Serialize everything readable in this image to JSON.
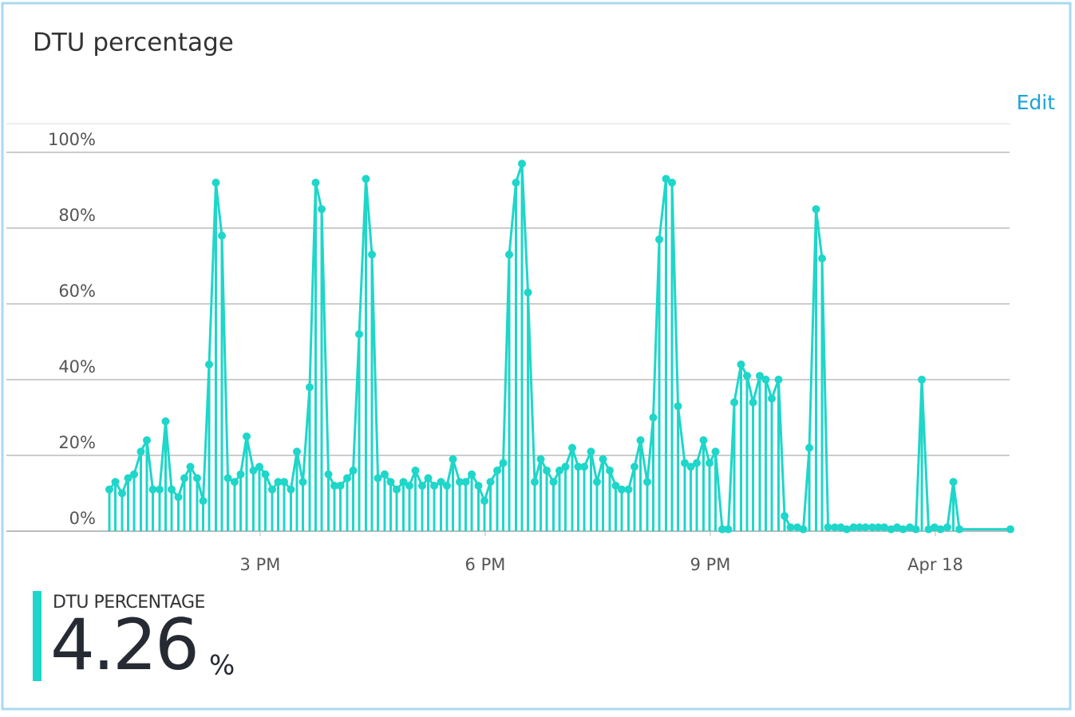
{
  "chart_data": {
    "type": "line",
    "title": "DTU percentage",
    "edit_link": "Edit",
    "color": "#1ed6c9",
    "grid": true,
    "xlim": [
      12.99,
      25
    ],
    "ylim": [
      0,
      100
    ],
    "xticks": [
      {
        "value": 15,
        "label": "3 PM"
      },
      {
        "value": 18,
        "label": "6 PM"
      },
      {
        "value": 21,
        "label": "9 PM"
      },
      {
        "value": 24,
        "label": "Apr 18"
      }
    ],
    "yticks": [
      {
        "value": 0,
        "label": "0%"
      },
      {
        "value": 20,
        "label": "20%"
      },
      {
        "value": 40,
        "label": "40%"
      },
      {
        "value": 60,
        "label": "60%"
      },
      {
        "value": 80,
        "label": "80%"
      },
      {
        "value": 100,
        "label": "100%"
      }
    ],
    "x": [
      12.99,
      13.07,
      13.16,
      13.24,
      13.32,
      13.41,
      13.49,
      13.57,
      13.66,
      13.74,
      13.82,
      13.91,
      13.99,
      14.07,
      14.16,
      14.24,
      14.32,
      14.41,
      14.49,
      14.57,
      14.66,
      14.74,
      14.82,
      14.91,
      14.99,
      15.07,
      15.16,
      15.24,
      15.32,
      15.41,
      15.49,
      15.57,
      15.66,
      15.74,
      15.82,
      15.91,
      15.99,
      16.07,
      16.16,
      16.24,
      16.32,
      16.41,
      16.49,
      16.57,
      16.66,
      16.74,
      16.82,
      16.91,
      16.99,
      17.07,
      17.16,
      17.24,
      17.32,
      17.41,
      17.49,
      17.57,
      17.66,
      17.74,
      17.82,
      17.91,
      17.99,
      18.07,
      18.16,
      18.24,
      18.32,
      18.41,
      18.49,
      18.57,
      18.66,
      18.74,
      18.82,
      18.91,
      18.99,
      19.07,
      19.16,
      19.24,
      19.32,
      19.41,
      19.49,
      19.57,
      19.66,
      19.74,
      19.82,
      19.91,
      19.99,
      20.07,
      20.16,
      20.24,
      20.32,
      20.41,
      20.49,
      20.57,
      20.66,
      20.74,
      20.82,
      20.91,
      20.99,
      21.07,
      21.16,
      21.24,
      21.32,
      21.41,
      21.49,
      21.57,
      21.66,
      21.74,
      21.82,
      21.91,
      21.99,
      22.07,
      22.16,
      22.24,
      22.32,
      22.41,
      22.49,
      22.57,
      22.66,
      22.74,
      22.82,
      22.91,
      22.99,
      23.07,
      23.16,
      23.24,
      23.32,
      23.41,
      23.49,
      23.57,
      23.66,
      23.74,
      23.82,
      23.91,
      23.99,
      24.07,
      24.16,
      24.24,
      24.32,
      25
    ],
    "series": [
      {
        "name": "DTU percentage",
        "color": "#1ed6c9",
        "values": [
          11,
          13,
          10,
          14,
          15,
          21,
          24,
          11,
          11,
          29,
          11,
          9,
          14,
          17,
          14,
          8,
          44,
          92,
          78,
          14,
          13,
          15,
          25,
          16,
          17,
          15,
          11,
          13,
          13,
          11,
          21,
          13,
          38,
          92,
          85,
          15,
          12,
          12,
          14,
          16,
          52,
          93,
          73,
          14,
          15,
          13,
          11,
          13,
          12,
          16,
          12,
          14,
          12,
          13,
          12,
          19,
          13,
          13,
          15,
          12,
          8,
          13,
          16,
          18,
          73,
          92,
          97,
          63,
          13,
          19,
          16,
          13,
          16,
          17,
          22,
          17,
          17,
          21,
          13,
          19,
          16,
          12,
          11,
          11,
          17,
          24,
          13,
          30,
          77,
          93,
          92,
          33,
          18,
          17,
          18,
          24,
          18,
          21,
          0.5,
          0.5,
          34,
          44,
          41,
          34,
          41,
          40,
          35,
          40,
          4,
          1,
          1,
          0.5,
          22,
          85,
          72,
          1,
          1,
          1,
          0.5,
          1,
          1,
          1,
          1,
          1,
          1,
          0.5,
          1,
          0.5,
          1,
          0.5,
          40,
          0.5,
          1,
          0.5,
          1,
          13,
          0.5,
          0.5
        ]
      }
    ],
    "summary": {
      "label": "DTU PERCENTAGE",
      "value": 4.26,
      "unit": "%"
    }
  }
}
